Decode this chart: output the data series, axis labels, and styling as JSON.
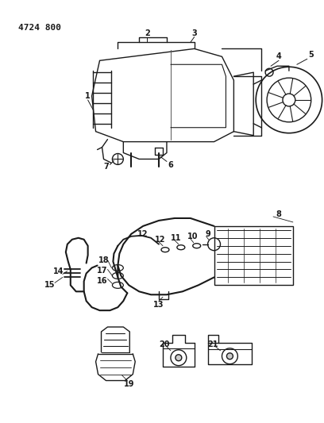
{
  "title": "4724 800",
  "bg": "#ffffff",
  "lc": "#1a1a1a",
  "figsize": [
    4.08,
    5.33
  ],
  "dpi": 100
}
